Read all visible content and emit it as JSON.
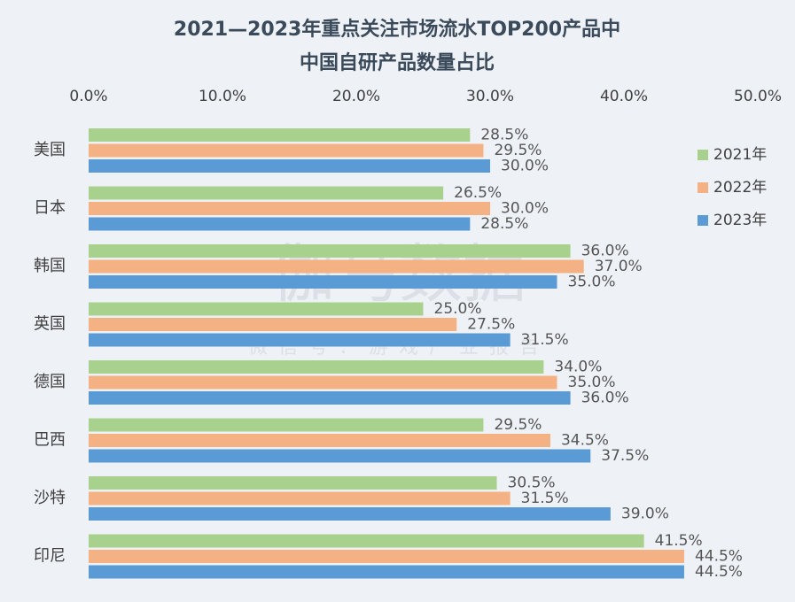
{
  "chart_data": {
    "type": "hbar",
    "title": [
      "2021—2023年重点关注市场流水TOP200产品中",
      "中国自研产品数量占比"
    ],
    "watermark": "伽马数据",
    "watermark_sub": "微信号：游戏产业报告",
    "categories": [
      "美国",
      "日本",
      "韩国",
      "英国",
      "德国",
      "巴西",
      "沙特",
      "印尼"
    ],
    "series": [
      {
        "name": "2021年",
        "color": "#a9d18e",
        "values": [
          28.5,
          26.5,
          36.0,
          25.0,
          34.0,
          29.5,
          30.5,
          41.5
        ],
        "value_labels": [
          "28.5%",
          "26.5%",
          "36.0%",
          "25.0%",
          "34.0%",
          "29.5%",
          "30.5%",
          "41.5%"
        ]
      },
      {
        "name": "2022年",
        "color": "#f4b183",
        "values": [
          29.5,
          30.0,
          37.0,
          27.5,
          35.0,
          34.5,
          31.5,
          44.5
        ],
        "value_labels": [
          "29.5%",
          "30.0%",
          "37.0%",
          "27.5%",
          "35.0%",
          "34.5%",
          "31.5%",
          "44.5%"
        ]
      },
      {
        "name": "2023年",
        "color": "#5b9bd5",
        "values": [
          30.0,
          28.5,
          35.0,
          31.5,
          36.0,
          37.5,
          39.0,
          44.5
        ],
        "value_labels": [
          "30.0%",
          "28.5%",
          "35.0%",
          "31.5%",
          "36.0%",
          "37.5%",
          "39.0%",
          "44.5%"
        ]
      }
    ],
    "xlim": [
      0,
      50
    ],
    "xticks": [
      {
        "value": 0,
        "label": "0.0%"
      },
      {
        "value": 10,
        "label": "10.0%"
      },
      {
        "value": 20,
        "label": "20.0%"
      },
      {
        "value": 30,
        "label": "30.0%"
      },
      {
        "value": 40,
        "label": "40.0%"
      },
      {
        "value": 50,
        "label": "50.0%"
      }
    ],
    "grid": false,
    "legend": "right"
  }
}
